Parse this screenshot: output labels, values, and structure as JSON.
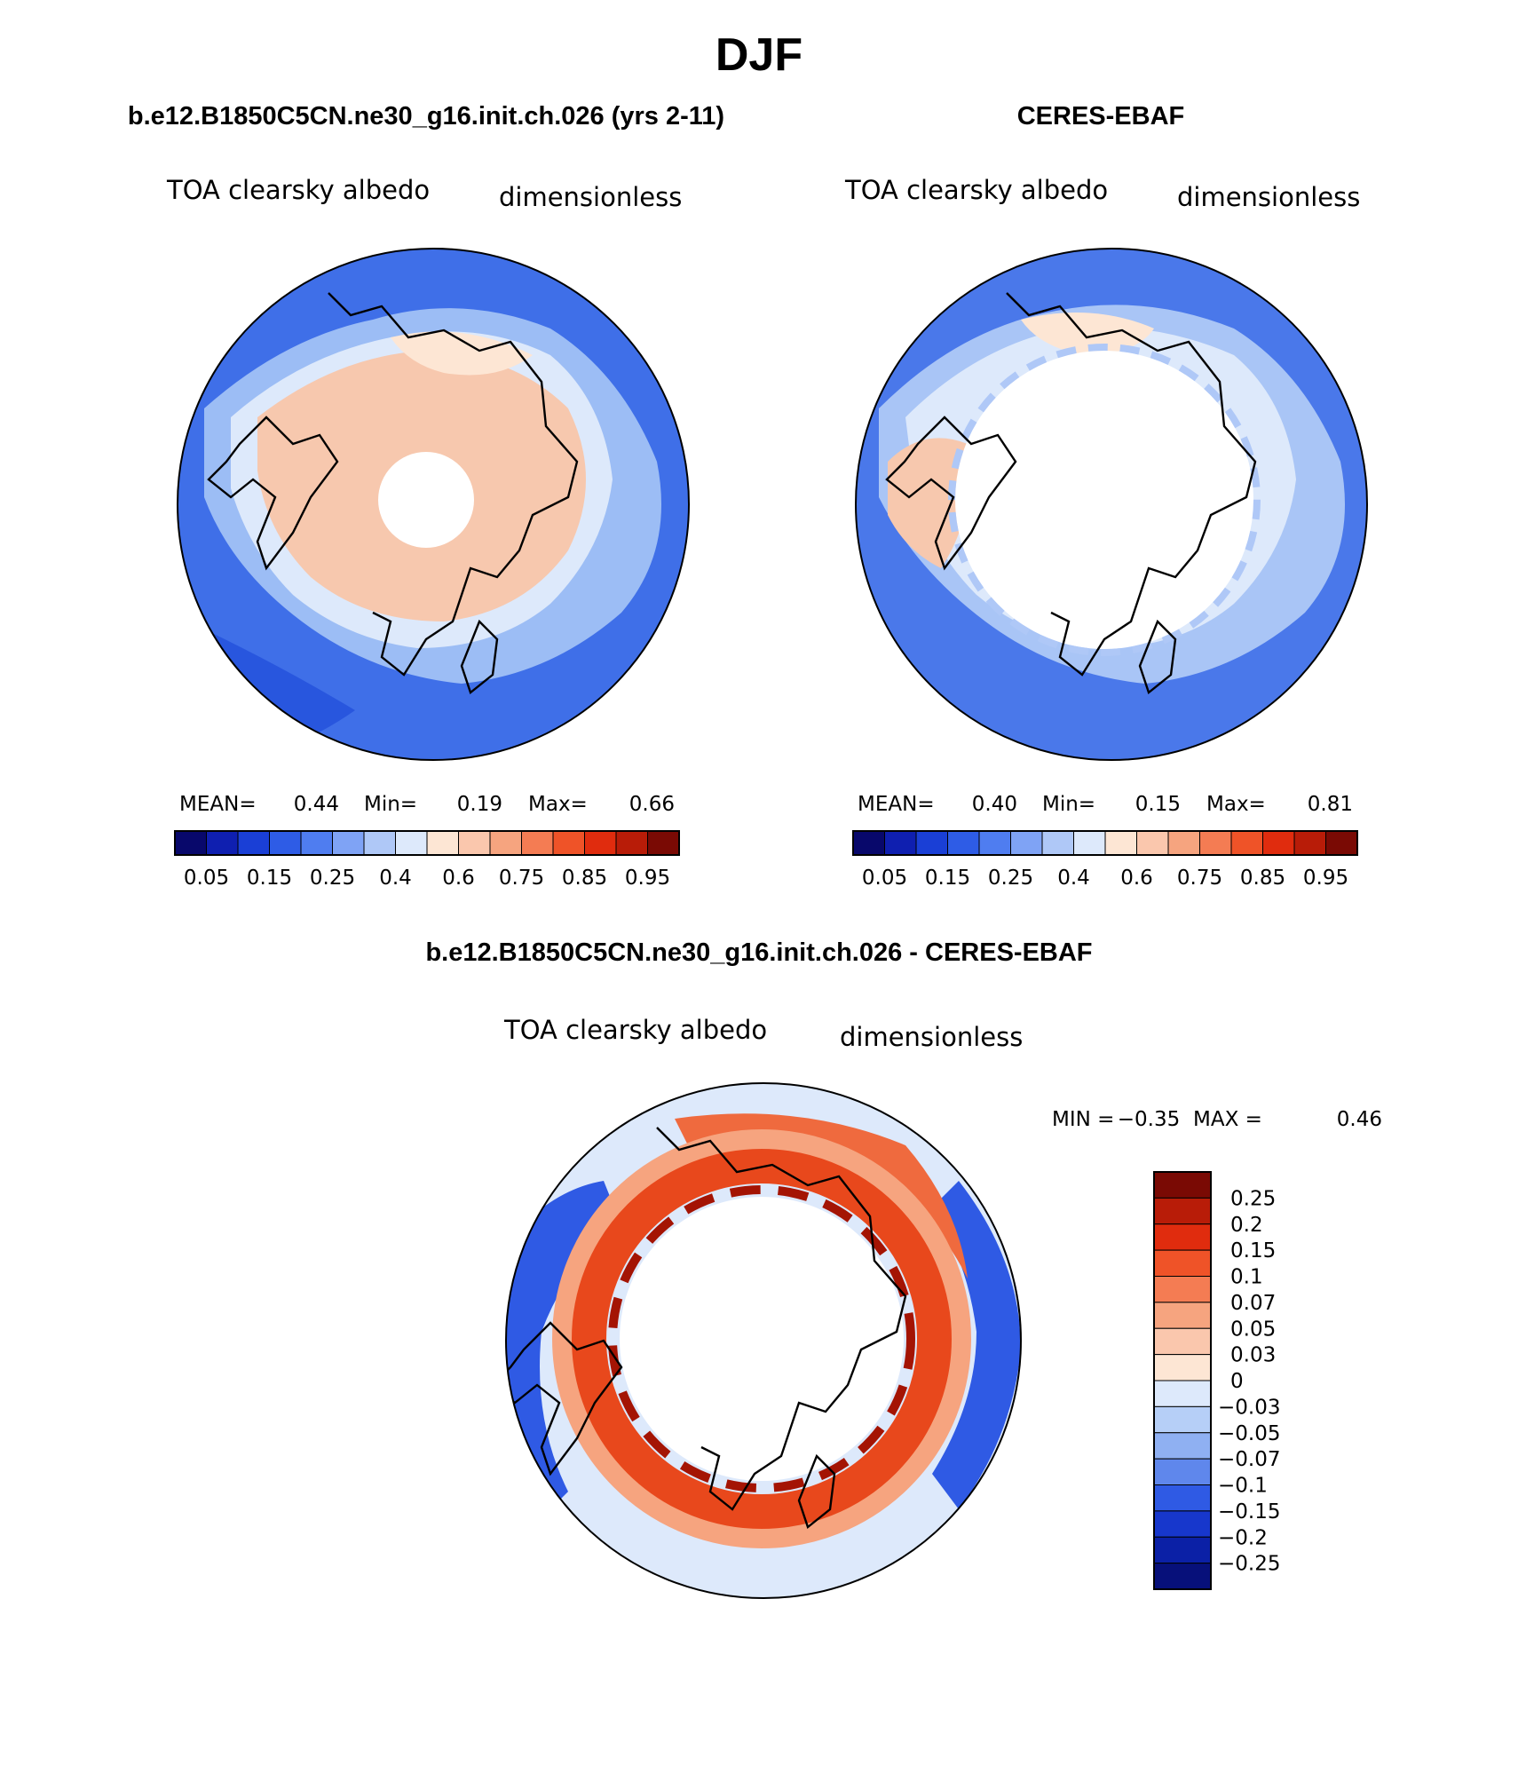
{
  "season_title": "DJF",
  "variable_label": "TOA clearsky albedo",
  "units_label": "dimensionless",
  "panels": {
    "model": {
      "title": "b.e12.B1850C5CN.ne30_g16.init.ch.026 (yrs 2-11)"
    },
    "obs": {
      "title": "CERES-EBAF"
    },
    "diff": {
      "title": "b.e12.B1850C5CN.ne30_g16.init.ch.026 - CERES-EBAF"
    }
  },
  "chart_data": [
    {
      "type": "heatmap",
      "projection": "north-polar-stereographic",
      "title": "b.e12.B1850C5CN.ne30_g16.init.ch.026 (yrs 2-11)",
      "stats": {
        "mean_label": "MEAN=",
        "mean": "0.44",
        "min_label": "Min=",
        "min": "0.19",
        "max_label": "Max=",
        "max": "0.66"
      },
      "colorbar": {
        "orientation": "horizontal",
        "colors": [
          "#08086b",
          "#0f1fb0",
          "#1a3fd6",
          "#2e5ce6",
          "#4f7df0",
          "#7fa3f5",
          "#afc8f7",
          "#dde9fb",
          "#fde6d4",
          "#fac7ad",
          "#f6a47f",
          "#f47c53",
          "#ef5328",
          "#e02c0e",
          "#b81c08",
          "#7a0a04"
        ],
        "tick_labels": [
          "0.05",
          "0.15",
          "0.25",
          "0.4",
          "0.6",
          "0.75",
          "0.85",
          "0.95"
        ]
      }
    },
    {
      "type": "heatmap",
      "projection": "north-polar-stereographic",
      "title": "CERES-EBAF",
      "stats": {
        "mean_label": "MEAN=",
        "mean": "0.40",
        "min_label": "Min=",
        "min": "0.15",
        "max_label": "Max=",
        "max": "0.81"
      },
      "colorbar": {
        "orientation": "horizontal",
        "colors": [
          "#08086b",
          "#0f1fb0",
          "#1a3fd6",
          "#2e5ce6",
          "#4f7df0",
          "#7fa3f5",
          "#afc8f7",
          "#dde9fb",
          "#fde6d4",
          "#fac7ad",
          "#f6a47f",
          "#f47c53",
          "#ef5328",
          "#e02c0e",
          "#b81c08",
          "#7a0a04"
        ],
        "tick_labels": [
          "0.05",
          "0.15",
          "0.25",
          "0.4",
          "0.6",
          "0.75",
          "0.85",
          "0.95"
        ]
      }
    },
    {
      "type": "heatmap",
      "projection": "north-polar-stereographic",
      "title": "b.e12.B1850C5CN.ne30_g16.init.ch.026 - CERES-EBAF",
      "stats": {
        "min_label": "MIN =",
        "min": "−0.35",
        "max_label": "MAX =",
        "max": "0.46"
      },
      "colorbar": {
        "orientation": "vertical",
        "colors_top_to_bottom": [
          "#7a0a04",
          "#b81c08",
          "#e02c0e",
          "#ef5328",
          "#f47c53",
          "#f6a47f",
          "#fac7ad",
          "#fde6d4",
          "#dde9fb",
          "#b6cff7",
          "#8fb0f2",
          "#5f87ec",
          "#2f5ae4",
          "#1737cc",
          "#0b20a6",
          "#07107a"
        ],
        "tick_labels": [
          "0.25",
          "0.2",
          "0.15",
          "0.1",
          "0.07",
          "0.05",
          "0.03",
          "0",
          "−0.03",
          "−0.05",
          "−0.07",
          "−0.1",
          "−0.15",
          "−0.2",
          "−0.25"
        ]
      }
    }
  ]
}
